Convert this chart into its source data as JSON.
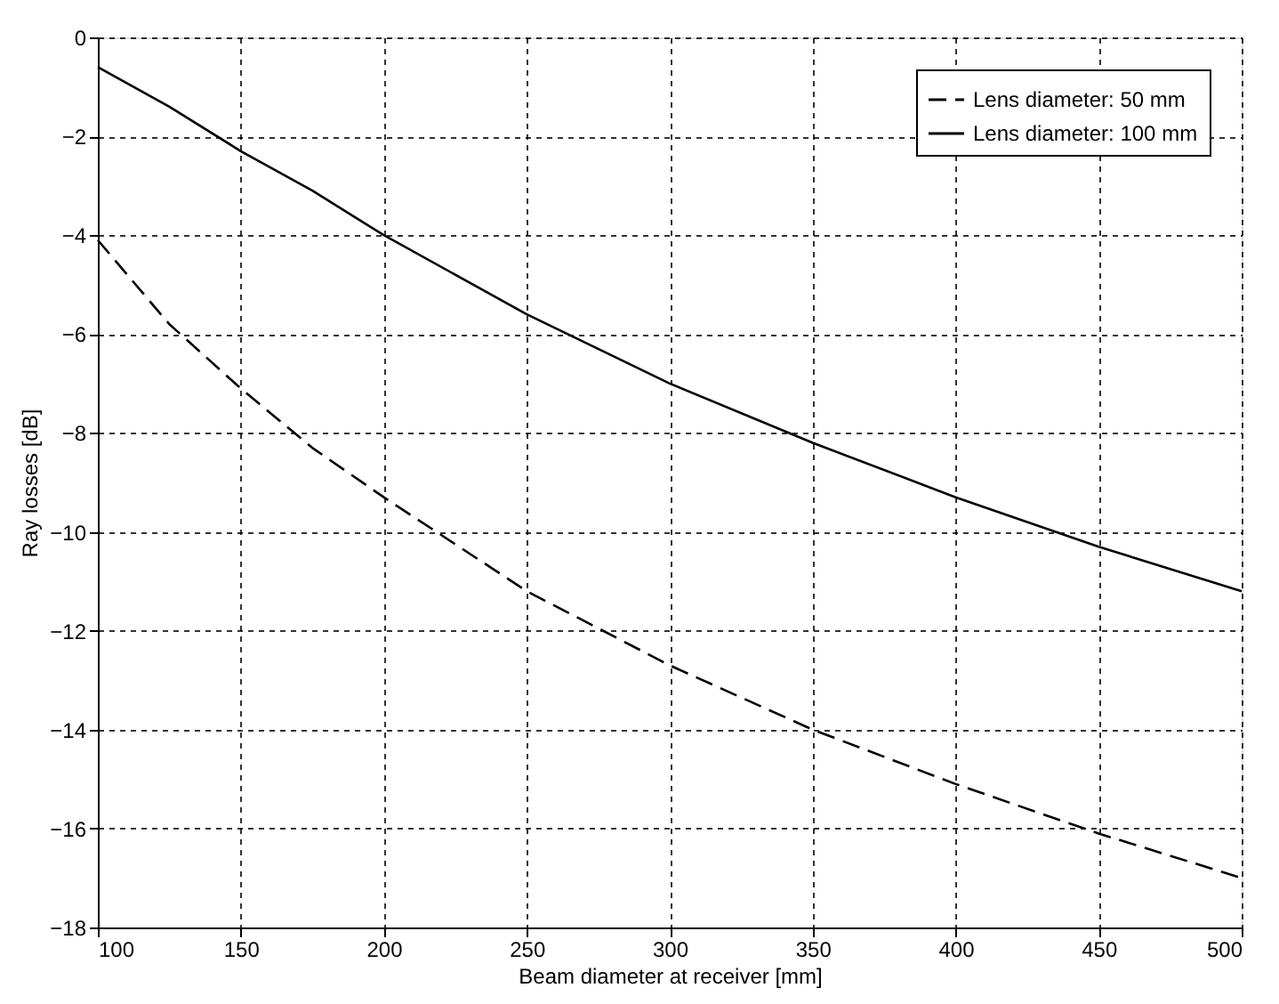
{
  "chart_data": {
    "type": "line",
    "xlabel": "Beam diameter at receiver [mm]",
    "ylabel": "Ray losses [dB]",
    "x": [
      100,
      125,
      150,
      175,
      200,
      250,
      300,
      350,
      400,
      450,
      500
    ],
    "series": [
      {
        "name": "Lens diameter: 50 mm",
        "color": "#000000",
        "line_style": "dashed",
        "values": [
          -4.1,
          -5.8,
          -7.1,
          -8.3,
          -9.3,
          -11.2,
          -12.7,
          -14.0,
          -15.1,
          -16.1,
          -17.0
        ]
      },
      {
        "name": "Lens diameter: 100 mm",
        "color": "#000000",
        "line_style": "solid",
        "values": [
          -0.6,
          -1.4,
          -2.3,
          -3.1,
          -4.0,
          -5.6,
          -7.0,
          -8.2,
          -9.3,
          -10.3,
          -11.2
        ]
      }
    ],
    "xlim": [
      100,
      500
    ],
    "xticks": [
      100,
      150,
      200,
      250,
      300,
      350,
      400,
      450,
      500
    ],
    "ylim": [
      -18,
      0
    ],
    "yticks": [
      -18,
      -16,
      -14,
      -12,
      -10,
      -8,
      -6,
      -4,
      -2,
      0
    ],
    "grid": true,
    "legend": "top right",
    "marker": "none"
  }
}
